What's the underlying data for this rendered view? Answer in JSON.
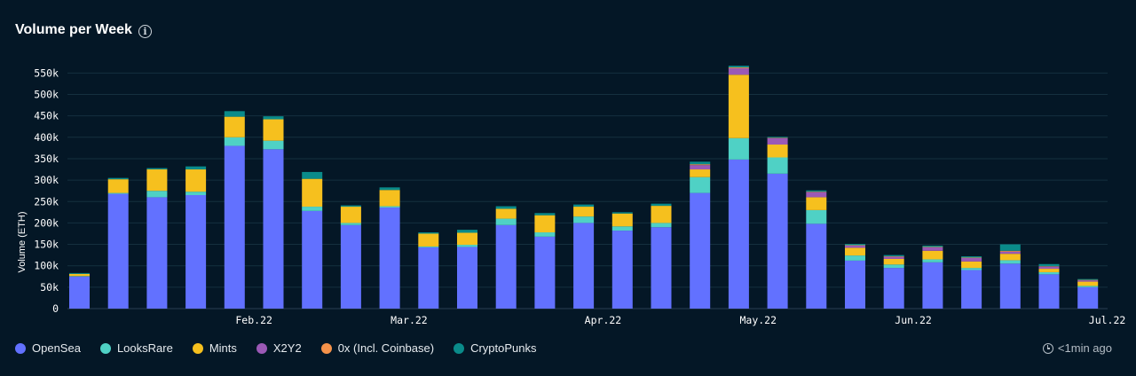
{
  "header": {
    "title": "Volume per Week",
    "info_icon": "info-icon"
  },
  "updated": {
    "text": "<1min ago",
    "icon": "clock-icon"
  },
  "colors": {
    "OpenSea": "#6271ff",
    "LooksRare": "#4fd1c5",
    "Mints": "#f6c01e",
    "X2Y2": "#9b59b6",
    "0x (Incl. Coinbase)": "#f5924a",
    "CryptoPunks": "#0a8b8a"
  },
  "chart_data": {
    "type": "bar",
    "stacked": true,
    "ylabel": "Volume (ETH)",
    "ylim": [
      0,
      570000
    ],
    "yticks": [
      0,
      50000,
      100000,
      150000,
      200000,
      250000,
      300000,
      350000,
      400000,
      450000,
      500000,
      550000
    ],
    "ytick_labels": [
      "0",
      "50k",
      "100k",
      "150k",
      "200k",
      "250k",
      "300k",
      "350k",
      "400k",
      "450k",
      "500k",
      "550k"
    ],
    "xtick_labels": [
      {
        "label": "Feb.22",
        "after_bar": 4
      },
      {
        "label": "Mar.22",
        "after_bar": 8
      },
      {
        "label": "Apr.22",
        "after_bar": 13
      },
      {
        "label": "May.22",
        "after_bar": 17
      },
      {
        "label": "Jun.22",
        "after_bar": 21
      },
      {
        "label": "Jul.22",
        "after_bar": 26
      }
    ],
    "grid": true,
    "legend": "bottom-left",
    "series": [
      {
        "name": "OpenSea",
        "values": [
          75000,
          268000,
          260000,
          265000,
          380000,
          372000,
          228000,
          195000,
          236000,
          143000,
          144000,
          195000,
          168000,
          200000,
          182000,
          190000,
          270000,
          348000,
          315000,
          198000,
          112000,
          95000,
          108000,
          90000,
          105000,
          80000,
          50000
        ]
      },
      {
        "name": "LooksRare",
        "values": [
          1000,
          2000,
          15000,
          8000,
          20000,
          20000,
          10000,
          5000,
          3000,
          2000,
          5000,
          15000,
          10000,
          15000,
          10000,
          10000,
          37000,
          50000,
          38000,
          32000,
          12000,
          8000,
          7000,
          5000,
          8000,
          5000,
          3000
        ]
      },
      {
        "name": "Mints",
        "values": [
          5000,
          32000,
          50000,
          52000,
          48000,
          50000,
          65000,
          38000,
          38000,
          30000,
          28000,
          23000,
          40000,
          23000,
          30000,
          40000,
          18000,
          148000,
          30000,
          30000,
          18000,
          13000,
          20000,
          15000,
          15000,
          8000,
          10000
        ]
      },
      {
        "name": "X2Y2",
        "values": [
          0,
          0,
          0,
          0,
          0,
          0,
          0,
          0,
          0,
          0,
          0,
          0,
          0,
          0,
          0,
          0,
          10000,
          15000,
          15000,
          12000,
          5000,
          5000,
          8000,
          8000,
          5000,
          5000,
          3000
        ]
      },
      {
        "name": "0x (Incl. Coinbase)",
        "values": [
          0,
          0,
          0,
          0,
          0,
          0,
          0,
          0,
          0,
          0,
          0,
          0,
          0,
          0,
          0,
          0,
          2000,
          2000,
          1000,
          1000,
          1000,
          1000,
          1000,
          1000,
          2000,
          1000,
          1000
        ]
      },
      {
        "name": "CryptoPunks",
        "values": [
          2000,
          3000,
          3000,
          7000,
          13000,
          7000,
          16000,
          3000,
          6000,
          3000,
          7000,
          6000,
          5000,
          5000,
          3000,
          5000,
          6000,
          4000,
          2000,
          3000,
          3000,
          3000,
          3000,
          3000,
          15000,
          5000,
          2000
        ]
      }
    ]
  }
}
